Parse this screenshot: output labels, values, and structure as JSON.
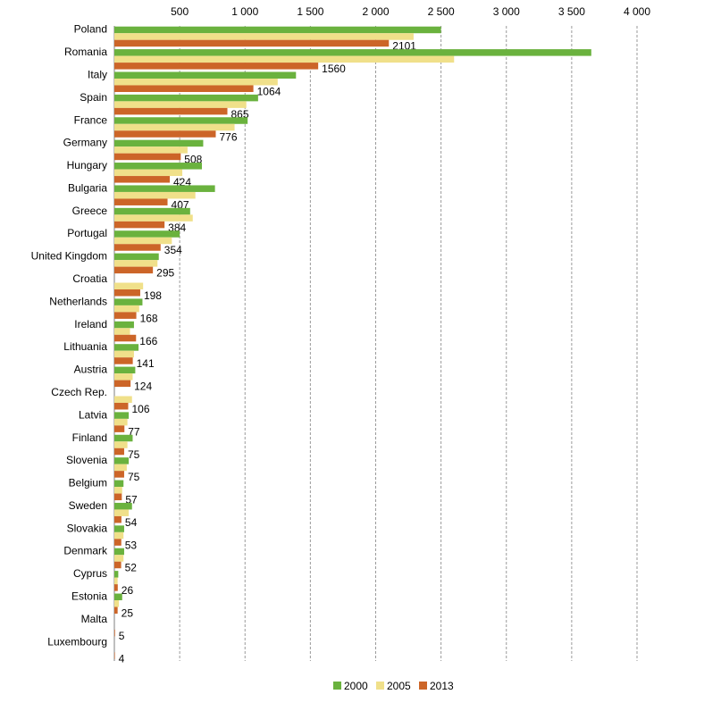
{
  "chart_data": {
    "type": "bar",
    "orientation": "horizontal",
    "categories": [
      "Poland",
      "Romania",
      "Italy",
      "Spain",
      "France",
      "Germany",
      "Hungary",
      "Bulgaria",
      "Greece",
      "Portugal",
      "United Kingdom",
      "Croatia",
      "Netherlands",
      "Ireland",
      "Lithuania",
      "Austria",
      "Czech Rep.",
      "Latvia",
      "Finland",
      "Slovenia",
      "Belgium",
      "Sweden",
      "Slovakia",
      "Denmark",
      "Cyprus",
      "Estonia",
      "Malta",
      "Luxembourg"
    ],
    "series": [
      {
        "name": "2000",
        "color": "#6ab23e",
        "values": [
          2500,
          3650,
          1390,
          1100,
          1020,
          680,
          670,
          770,
          580,
          500,
          340,
          null,
          215,
          150,
          185,
          160,
          null,
          110,
          140,
          110,
          70,
          135,
          75,
          75,
          30,
          60,
          null,
          null
        ]
      },
      {
        "name": "2005",
        "color": "#f0e08a",
        "values": [
          2290,
          2600,
          1250,
          1010,
          920,
          560,
          520,
          620,
          600,
          440,
          330,
          220,
          190,
          120,
          150,
          140,
          135,
          100,
          100,
          95,
          60,
          110,
          70,
          70,
          25,
          35,
          null,
          null
        ]
      },
      {
        "name": "2013",
        "color": "#cc6528",
        "values": [
          2101,
          1560,
          1064,
          865,
          776,
          508,
          424,
          407,
          384,
          354,
          295,
          198,
          168,
          166,
          141,
          124,
          106,
          77,
          75,
          75,
          57,
          54,
          53,
          52,
          26,
          25,
          5,
          4
        ]
      }
    ],
    "data_labels": [
      "2101",
      "1560",
      "1064",
      "865",
      "776",
      "508",
      "424",
      "407",
      "384",
      "354",
      "295",
      "198",
      "168",
      "166",
      "141",
      "124",
      "106",
      "77",
      "75",
      "75",
      "57",
      "54",
      "53",
      "52",
      "26",
      "25",
      "5",
      "4"
    ],
    "x_ticks": [
      500,
      1000,
      1500,
      2000,
      2500,
      3000,
      3500,
      4000
    ],
    "x_tick_labels": [
      "500",
      "1 000",
      "1 500",
      "2 000",
      "2 500",
      "3 000",
      "3 500",
      "4 000"
    ],
    "xlim": [
      0,
      4000
    ],
    "grid": "vertical dashed",
    "legend": "bottom-center",
    "title": "",
    "xlabel": "",
    "ylabel": ""
  }
}
